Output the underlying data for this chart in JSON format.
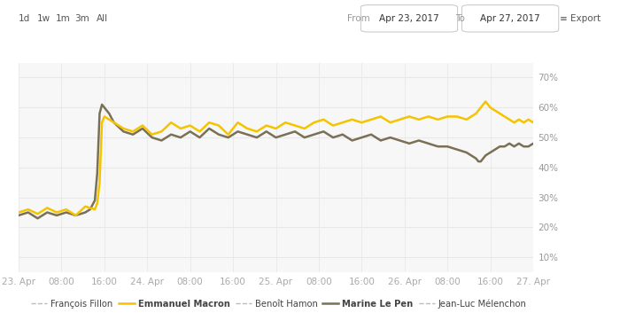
{
  "bg_color": "#ffffff",
  "plot_bg_color": "#f7f7f7",
  "grid_color": "#e8e8e8",
  "ylim": [
    0.05,
    0.75
  ],
  "yticks": [
    0.1,
    0.2,
    0.3,
    0.4,
    0.5,
    0.6,
    0.7
  ],
  "xtick_labels": [
    "23. Apr",
    "08:00",
    "16:00",
    "24. Apr",
    "08:00",
    "16:00",
    "25. Apr",
    "08:00",
    "16:00",
    "26. Apr",
    "08:00",
    "16:00",
    "27. Apr"
  ],
  "macron_color": "#f5c400",
  "lepen_color": "#7a7055",
  "fillon_color": "#bbbbbb",
  "header_text_color": "#555555",
  "header_gray": "#999999"
}
